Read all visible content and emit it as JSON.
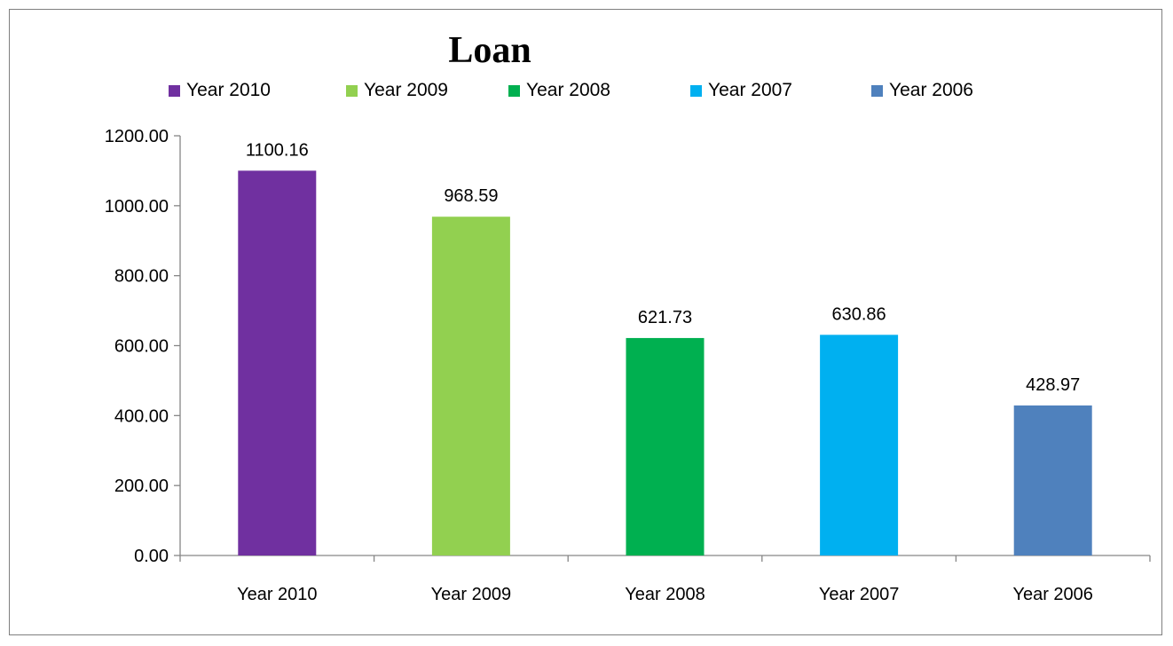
{
  "chart_data": {
    "type": "bar",
    "title": "Loan",
    "categories": [
      "Year 2010",
      "Year 2009",
      "Year 2008",
      "Year 2007",
      "Year 2006"
    ],
    "values": [
      1100.16,
      968.59,
      621.73,
      630.86,
      428.97
    ],
    "data_labels": [
      "1100.16",
      "968.59",
      "621.73",
      "630.86",
      "428.97"
    ],
    "colors": [
      "#7030a0",
      "#92d050",
      "#00b050",
      "#00b0f0",
      "#4f81bd"
    ],
    "legend": [
      "Year 2010",
      "Year 2009",
      "Year 2008",
      "Year 2007",
      "Year 2006"
    ],
    "legend_position": "top",
    "ylim": [
      0,
      1200
    ],
    "yticks": [
      0,
      200,
      400,
      600,
      800,
      1000,
      1200
    ],
    "ytick_labels": [
      "0.00",
      "200.00",
      "400.00",
      "600.00",
      "800.00",
      "1000.00",
      "1200.00"
    ],
    "grid": false,
    "xlabel": "",
    "ylabel": ""
  }
}
